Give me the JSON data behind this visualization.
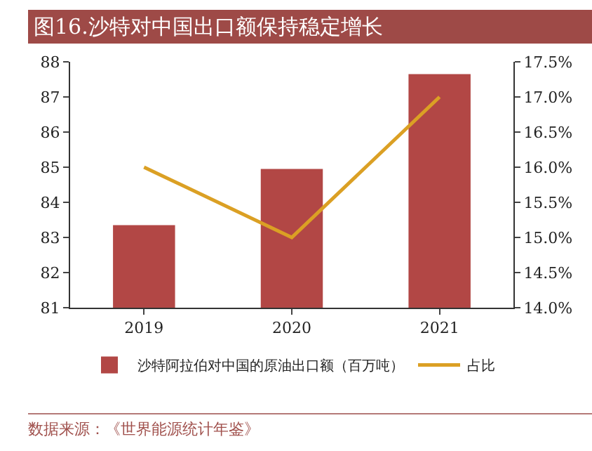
{
  "chart_data": {
    "type": "bar",
    "title": "图16.沙特对中国出口额保持稳定增长",
    "categories": [
      "2019",
      "2020",
      "2021"
    ],
    "series": [
      {
        "name": "沙特阿拉伯对中国的原油出口额（百万吨）",
        "color": "#b24745",
        "values": [
          83.35,
          84.95,
          87.65
        ]
      },
      {
        "name": "占比",
        "type": "line",
        "axis": "y2",
        "color": "#dba024",
        "values": [
          16.0,
          15.0,
          17.0
        ]
      }
    ],
    "ylim": [
      81,
      88
    ],
    "yticks": [
      81,
      82,
      83,
      84,
      85,
      86,
      87,
      88
    ],
    "y2lim": [
      14.0,
      17.5
    ],
    "y2ticks": [
      {
        "value": 14.0,
        "label": "14.0%"
      },
      {
        "value": 14.5,
        "label": "14.5%"
      },
      {
        "value": 15.0,
        "label": "15.0%"
      },
      {
        "value": 15.5,
        "label": "15.5%"
      },
      {
        "value": 16.0,
        "label": "16.0%"
      },
      {
        "value": 16.5,
        "label": "16.5%"
      },
      {
        "value": 17.0,
        "label": "17.0%"
      },
      {
        "value": 17.5,
        "label": "17.5%"
      }
    ],
    "grid": false,
    "legend": "bottom",
    "marker": "none",
    "annotations": [
      "数据来源：《世界能源统计年鉴》"
    ]
  }
}
